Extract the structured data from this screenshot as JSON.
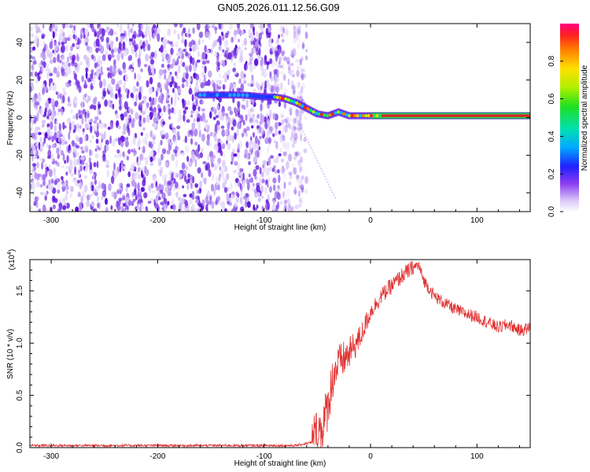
{
  "title": "GN05.2026.011.12.56.G09",
  "colors": {
    "signal": "#e03030",
    "axis": "#000000",
    "spectro_base": "#7b3fe4"
  },
  "chart_data": [
    {
      "type": "heatmap",
      "name": "spectrogram",
      "xlabel": "Height of straight line (km)",
      "ylabel": "Frequency (Hz)",
      "xlim": [
        -320,
        150
      ],
      "ylim": [
        -50,
        50
      ],
      "xticks": [
        -300,
        -200,
        -100,
        0,
        100
      ],
      "yticks": [
        -40,
        -20,
        0,
        20,
        40
      ],
      "noise_region_x": [
        -320,
        -70
      ],
      "ridge": {
        "x": [
          -160,
          -140,
          -120,
          -100,
          -90,
          -80,
          -70,
          -60,
          -50,
          -40,
          -30,
          -20,
          -10,
          0,
          10,
          50,
          100,
          150
        ],
        "y": [
          12,
          12,
          12,
          11,
          11,
          10,
          8,
          5,
          2,
          1,
          3,
          1,
          1,
          1,
          1,
          1,
          1,
          1
        ]
      },
      "colorbar": {
        "label": "Normalized spectral amplitude",
        "ticks": [
          0.0,
          0.2,
          0.4,
          0.6,
          0.8
        ],
        "range": [
          0,
          1
        ]
      }
    },
    {
      "type": "line",
      "name": "snr",
      "xlabel": "Height of straight line (km)",
      "ylabel": "SNR (10 * v/v)",
      "multiplier": "(x10",
      "multiplier_exp": "4",
      "xlim": [
        -320,
        150
      ],
      "ylim": [
        0,
        1.8
      ],
      "xticks": [
        -300,
        -200,
        -100,
        0,
        100
      ],
      "yticks": [
        0.0,
        0.5,
        1.0,
        1.5
      ],
      "series": [
        {
          "name": "SNR",
          "x": [
            -320,
            -100,
            -70,
            -55,
            -45,
            -40,
            -35,
            -30,
            -25,
            -20,
            -10,
            0,
            10,
            20,
            30,
            40,
            45,
            50,
            60,
            70,
            80,
            90,
            100,
            110,
            120,
            130,
            140,
            150
          ],
          "y": [
            0.02,
            0.02,
            0.02,
            0.05,
            0.2,
            0.4,
            0.7,
            0.8,
            0.85,
            0.9,
            1.05,
            1.3,
            1.45,
            1.55,
            1.65,
            1.72,
            1.75,
            1.6,
            1.45,
            1.38,
            1.32,
            1.28,
            1.25,
            1.2,
            1.15,
            1.18,
            1.12,
            1.15
          ]
        }
      ]
    }
  ]
}
